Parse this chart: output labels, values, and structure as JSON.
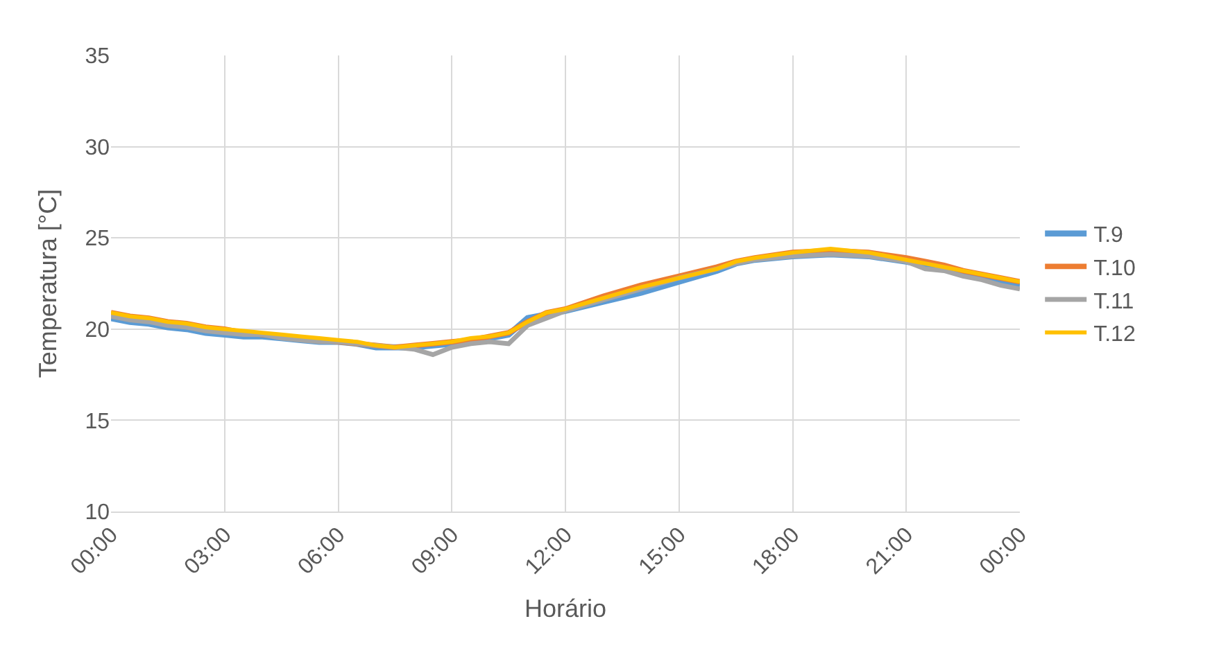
{
  "chart_data": {
    "type": "line",
    "xlabel": "Horário",
    "ylabel": "Temperatura [°C]",
    "x": [
      0,
      0.5,
      1,
      1.5,
      2,
      2.5,
      3,
      3.5,
      4,
      4.5,
      5,
      5.5,
      6,
      6.5,
      7,
      7.5,
      8,
      8.5,
      9,
      9.5,
      10,
      10.5,
      11,
      11.5,
      12,
      13,
      14,
      15,
      16,
      16.5,
      17,
      18,
      19,
      20,
      21,
      21.5,
      22,
      22.5,
      23,
      23.5,
      24
    ],
    "series": [
      {
        "name": "T.9",
        "color": "#5b9bd5",
        "values": [
          20.6,
          20.4,
          20.3,
          20.1,
          20.0,
          19.8,
          19.7,
          19.6,
          19.6,
          19.5,
          19.4,
          19.3,
          19.3,
          19.2,
          19.0,
          19.0,
          19.0,
          19.1,
          19.2,
          19.3,
          19.5,
          19.7,
          20.6,
          20.8,
          21.0,
          21.5,
          22.0,
          22.6,
          23.2,
          23.6,
          23.8,
          24.0,
          24.1,
          24.0,
          23.7,
          23.5,
          23.3,
          23.0,
          22.8,
          22.6,
          22.4
        ]
      },
      {
        "name": "T.10",
        "color": "#ed7d31",
        "values": [
          20.9,
          20.7,
          20.6,
          20.4,
          20.3,
          20.1,
          20.0,
          19.8,
          19.7,
          19.6,
          19.5,
          19.4,
          19.3,
          19.2,
          19.1,
          19.0,
          19.1,
          19.2,
          19.3,
          19.4,
          19.6,
          19.8,
          20.4,
          20.9,
          21.1,
          21.8,
          22.4,
          22.9,
          23.4,
          23.7,
          23.9,
          24.2,
          24.3,
          24.2,
          23.9,
          23.7,
          23.5,
          23.2,
          23.0,
          22.8,
          22.6
        ]
      },
      {
        "name": "T.11",
        "color": "#a5a5a5",
        "values": [
          20.7,
          20.5,
          20.4,
          20.2,
          20.1,
          19.9,
          19.8,
          19.7,
          19.7,
          19.5,
          19.4,
          19.3,
          19.3,
          19.2,
          19.1,
          19.0,
          18.9,
          18.6,
          19.0,
          19.2,
          19.3,
          19.2,
          20.2,
          20.6,
          21.0,
          21.6,
          22.2,
          22.8,
          23.3,
          23.6,
          23.8,
          24.0,
          24.1,
          24.0,
          23.7,
          23.3,
          23.2,
          22.9,
          22.7,
          22.4,
          22.2
        ]
      },
      {
        "name": "T.12",
        "color": "#ffc000",
        "values": [
          20.9,
          20.7,
          20.6,
          20.4,
          20.3,
          20.1,
          20.0,
          19.9,
          19.8,
          19.7,
          19.6,
          19.5,
          19.4,
          19.3,
          19.1,
          19.0,
          19.1,
          19.2,
          19.3,
          19.5,
          19.6,
          19.8,
          20.4,
          20.9,
          21.1,
          21.7,
          22.3,
          22.8,
          23.3,
          23.7,
          23.9,
          24.2,
          24.4,
          24.2,
          23.8,
          23.6,
          23.4,
          23.2,
          23.0,
          22.8,
          22.6
        ]
      }
    ],
    "xlim": [
      0,
      24
    ],
    "xticks": [
      {
        "value": 0,
        "label": "00:00"
      },
      {
        "value": 3,
        "label": "03:00"
      },
      {
        "value": 6,
        "label": "06:00"
      },
      {
        "value": 9,
        "label": "09:00"
      },
      {
        "value": 12,
        "label": "12:00"
      },
      {
        "value": 15,
        "label": "15:00"
      },
      {
        "value": 18,
        "label": "18:00"
      },
      {
        "value": 21,
        "label": "21:00"
      },
      {
        "value": 24,
        "label": "00:00"
      }
    ],
    "ylim": [
      10,
      35
    ],
    "yticks": [
      10,
      15,
      20,
      25,
      30,
      35
    ],
    "grid": true,
    "legend": "right",
    "marker": "none",
    "line_style": "solid"
  }
}
